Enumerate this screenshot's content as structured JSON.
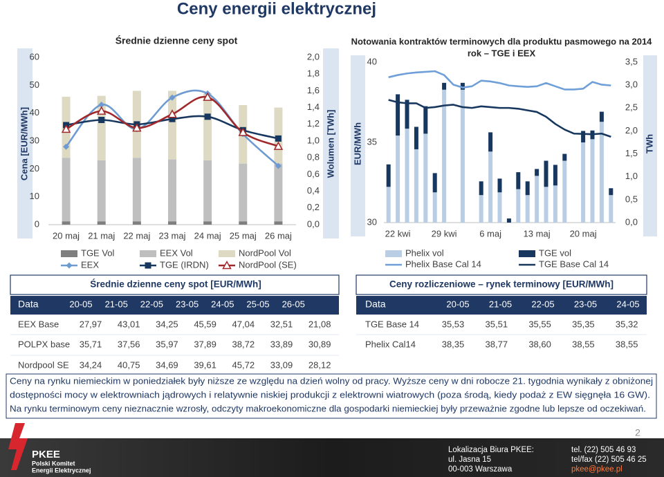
{
  "title": "Ceny energii elektrycznej",
  "chart_data": [
    {
      "type": "combo",
      "title": "Średnie dzienne ceny spot",
      "ylabel": "Cena [EUR/MWh]",
      "y2label": "Wolumen [TWh]",
      "categories": [
        "20 maj",
        "21 maj",
        "22 maj",
        "23 maj",
        "24 maj",
        "25 maj",
        "26 maj"
      ],
      "ylim": [
        0,
        60
      ],
      "yticks": [
        0,
        10,
        20,
        30,
        40,
        50,
        60
      ],
      "y2lim": [
        0,
        2
      ],
      "y2ticks": [
        {
          "value": 0,
          "label": "0,0"
        },
        {
          "value": 0.2,
          "label": "0,2"
        },
        {
          "value": 0.4,
          "label": "0,4"
        },
        {
          "value": 0.6,
          "label": "0,6"
        },
        {
          "value": 0.8,
          "label": "0,8"
        },
        {
          "value": 1,
          "label": "1,0"
        },
        {
          "value": 1.2,
          "label": "1,2"
        },
        {
          "value": 1.4,
          "label": "1,4"
        },
        {
          "value": 1.6,
          "label": "1,6"
        },
        {
          "value": 1.8,
          "label": "1,8"
        },
        {
          "value": 2,
          "label": "2,0"
        }
      ],
      "stacked": true,
      "smooth": true,
      "series": [
        {
          "name": "TGE Vol",
          "type": "bar",
          "axis": "y2",
          "color": "#7f7f7f",
          "values": [
            0.04,
            0.04,
            0.04,
            0.04,
            0.04,
            0.04,
            0.04
          ]
        },
        {
          "name": "EEX Vol",
          "type": "bar",
          "axis": "y2",
          "color": "#bfbfbf",
          "values": [
            0.76,
            0.73,
            0.76,
            0.74,
            0.73,
            0.69,
            0.69
          ]
        },
        {
          "name": "NordPool Vol",
          "type": "bar",
          "axis": "y2",
          "color": "#ddd9c3",
          "values": [
            0.73,
            0.77,
            0.8,
            0.82,
            0.8,
            0.7,
            0.67
          ]
        },
        {
          "name": "EEX",
          "type": "line",
          "color": "#6d9bd1",
          "marker": "diamond",
          "values": [
            27.97,
            43.01,
            34.25,
            45.59,
            47.04,
            32.51,
            21.08
          ]
        },
        {
          "name": "TGE (IRDN)",
          "type": "line",
          "color": "#17375e",
          "marker": "square",
          "values": [
            35.71,
            37.56,
            35.97,
            37.89,
            38.72,
            33.89,
            30.89
          ]
        },
        {
          "name": "NordPool (SE)",
          "type": "line",
          "color": "#a0282a",
          "marker": "triangle-open",
          "values": [
            34.24,
            40.75,
            34.69,
            39.61,
            45.72,
            33.09,
            28.12
          ]
        }
      ]
    },
    {
      "type": "combo",
      "title": [
        "Notowania kontraktów terminowych dla produktu pasmowego na 2014",
        "rok – TGE i EEX"
      ],
      "ylabel": "EUR/MWh",
      "y2label": "TWh",
      "categories": [
        null,
        "22 kwi",
        null,
        null,
        null,
        null,
        "29 kwi",
        null,
        null,
        null,
        null,
        "6 maj",
        null,
        null,
        null,
        null,
        "13 maj",
        null,
        null,
        null,
        null,
        "20 maj",
        null,
        null,
        null
      ],
      "ylim": [
        30,
        40
      ],
      "yticks": [
        30,
        35,
        40
      ],
      "y2lim": [
        0,
        3.5
      ],
      "y2ticks": [
        {
          "value": 0,
          "label": "0,0"
        },
        {
          "value": 0.5,
          "label": "0,5"
        },
        {
          "value": 1,
          "label": "1,0"
        },
        {
          "value": 1.5,
          "label": "1,5"
        },
        {
          "value": 2,
          "label": "2,0"
        },
        {
          "value": 2.5,
          "label": "2,5"
        },
        {
          "value": 3,
          "label": "3,0"
        },
        {
          "value": 3.5,
          "label": "3,5"
        }
      ],
      "stacked": true,
      "smooth": false,
      "series": [
        {
          "name": "Phelix vol",
          "type": "bar",
          "axis": "y2",
          "color": "#b9cde5",
          "values": [
            0.78,
            1.9,
            2.05,
            1.6,
            1.94,
            0.66,
            2.9,
            null,
            2.9,
            null,
            0.6,
            1.55,
            0.66,
            0,
            0.73,
            0.6,
            1.02,
            0.78,
            0.81,
            1.35,
            null,
            1.75,
            1.82,
            2.2,
            0.6
          ]
        },
        {
          "name": "TGE vol",
          "type": "bar",
          "axis": "y2",
          "color": "#17375e",
          "values": [
            0.49,
            0.9,
            0.63,
            0.49,
            0.6,
            0.42,
            0.15,
            null,
            0.15,
            null,
            0.3,
            0.42,
            0.3,
            0.09,
            0.37,
            0.3,
            0.15,
            0.57,
            0.45,
            0.15,
            null,
            0.25,
            0.19,
            0.22,
            0.15
          ]
        },
        {
          "name": "Phelix Base Cal 14",
          "type": "line",
          "color": "#6f9fd8",
          "values": [
            39.06,
            39.2,
            39.3,
            39.36,
            39.4,
            39.44,
            39.2,
            38.6,
            38.42,
            38.5,
            38.85,
            38.8,
            38.7,
            38.55,
            38.5,
            38.46,
            38.5,
            38.7,
            38.5,
            38.3,
            38.3,
            38.35,
            38.77,
            38.6,
            38.55
          ]
        },
        {
          "name": "TGE Base Cal 14",
          "type": "line",
          "color": "#17375e",
          "values": [
            37.65,
            37.5,
            37.44,
            37.44,
            37.15,
            37.2,
            37.3,
            37.35,
            37.2,
            37.15,
            37.25,
            37.2,
            37.15,
            37.15,
            37.1,
            37.0,
            36.9,
            36.6,
            36.15,
            35.8,
            35.55,
            35.53,
            35.51,
            35.55,
            35.35
          ]
        }
      ]
    }
  ],
  "tables": [
    {
      "title": "Średnie dzienne ceny spot [EUR/MWh]",
      "header": [
        "Data",
        "20-05",
        "21-05",
        "22-05",
        "23-05",
        "24-05",
        "25-05",
        "26-05"
      ],
      "rows": [
        [
          "EEX Base",
          "27,97",
          "43,01",
          "34,25",
          "45,59",
          "47,04",
          "32,51",
          "21,08"
        ],
        [
          "POLPX base",
          "35,71",
          "37,56",
          "35,97",
          "37,89",
          "38,72",
          "33,89",
          "30,89"
        ],
        [
          "Nordpool SE",
          "34,24",
          "40,75",
          "34,69",
          "39,61",
          "45,72",
          "33,09",
          "28,12"
        ]
      ]
    },
    {
      "title": "Ceny rozliczeniowe – rynek terminowy [EUR/MWh]",
      "header": [
        "Data",
        "20-05",
        "21-05",
        "22-05",
        "23-05",
        "24-05"
      ],
      "rows": [
        [
          "TGE Base 14",
          "35,53",
          "35,51",
          "35,55",
          "35,35",
          "35,32"
        ],
        [
          "Phelix Cal14",
          "38,35",
          "38,77",
          "38,60",
          "38,55",
          "38,55"
        ]
      ]
    }
  ],
  "note": [
    "Ceny na rynku niemieckim w poniedziałek były niższe ze względu na dzień wolny od pracy. Wyższe ceny w dni robocze 21. tygodnia wynikały z obniżonej",
    "dostępności mocy w elektrowniach jądrowych i relatywnie niskiej produkcji z elektrowni wiatrowych (poza środą, kiedy podaż z EW sięgnęła 16 GW).",
    "Na rynku terminowym ceny nieznacznie wzrosły, odczyty makroekonomiczne dla gospodarki niemieckiej były przeważnie zgodne lub lepsze od oczekiwań."
  ],
  "page_number": "2",
  "footer": {
    "logo": [
      "PKEE",
      "Polski Komitet",
      "Energii Elektrycznej"
    ],
    "address": [
      "Lokalizacja Biura PKEE:",
      "ul. Jasna 15",
      "00-003 Warszawa"
    ],
    "contact": [
      "tel. (22) 505 46 93",
      "tel/fax (22) 505 46 25",
      "pkee@pkee.pl"
    ]
  }
}
